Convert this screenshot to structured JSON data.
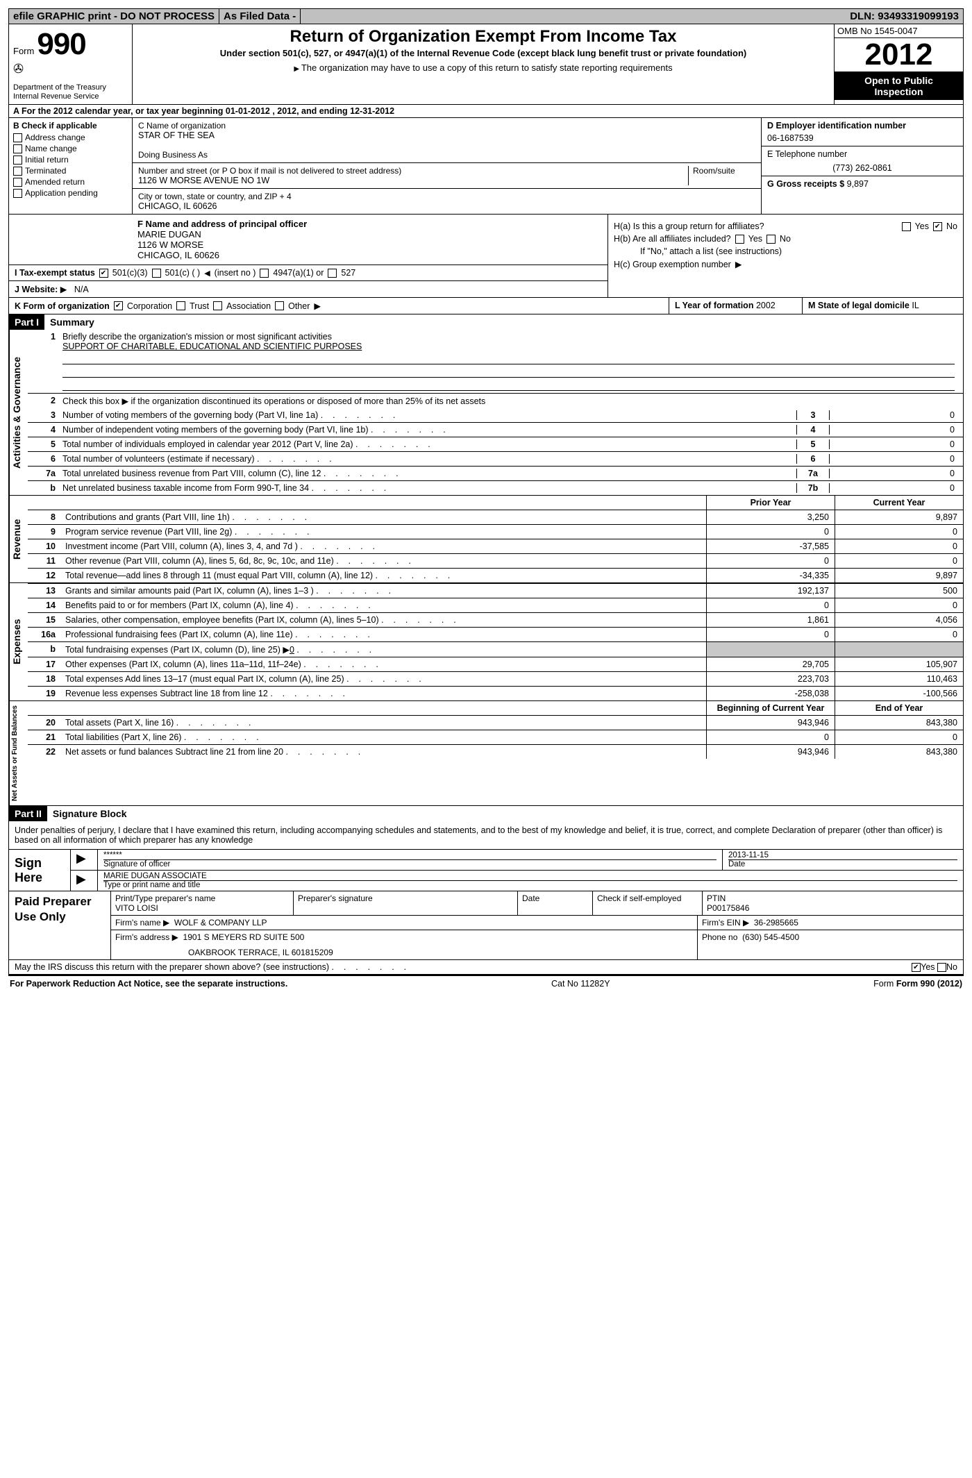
{
  "topbar": {
    "efile": "efile GRAPHIC print - DO NOT PROCESS",
    "asfiled": "As Filed Data -",
    "dln_label": "DLN:",
    "dln": "93493319099193"
  },
  "header": {
    "form_word": "Form",
    "form_num": "990",
    "dept1": "Department of the Treasury",
    "dept2": "Internal Revenue Service",
    "title": "Return of Organization Exempt From Income Tax",
    "sub1": "Under section 501(c), 527, or 4947(a)(1) of the Internal Revenue Code (except black lung benefit trust or private foundation)",
    "sub2": "The organization may have to use a copy of this return to satisfy state reporting requirements",
    "omb": "OMB No 1545-0047",
    "year": "2012",
    "open1": "Open to Public",
    "open2": "Inspection"
  },
  "rowA": "A For the 2012 calendar year, or tax year beginning 01-01-2012    , 2012, and ending 12-31-2012",
  "colB": {
    "label": "B Check if applicable",
    "items": [
      "Address change",
      "Name change",
      "Initial return",
      "Terminated",
      "Amended return",
      "Application pending"
    ]
  },
  "colC": {
    "name_lbl": "C Name of organization",
    "name": "STAR OF THE SEA",
    "dba_lbl": "Doing Business As",
    "street_lbl": "Number and street (or P O  box if mail is not delivered to street address)",
    "room_lbl": "Room/suite",
    "street": "1126 W MORSE AVENUE NO 1W",
    "city_lbl": "City or town, state or country, and ZIP + 4",
    "city": "CHICAGO, IL  60626"
  },
  "colD": {
    "ein_lbl": "D Employer identification number",
    "ein": "06-1687539",
    "tel_lbl": "E Telephone number",
    "tel": "(773) 262-0861",
    "gross_lbl": "G Gross receipts $",
    "gross": "9,897"
  },
  "rowF": {
    "lbl": "F  Name and address of principal officer",
    "l1": "MARIE DUGAN",
    "l2": "1126 W MORSE",
    "l3": "CHICAGO, IL  60626"
  },
  "rowH": {
    "ha": "H(a)  Is this a group return for affiliates?",
    "yes": "Yes",
    "no": "No",
    "hb": "H(b)  Are all affiliates included?",
    "hb2": "If \"No,\" attach a list  (see instructions)",
    "hc": "H(c)   Group exemption number"
  },
  "rowI": {
    "lbl": "I   Tax-exempt status",
    "o1": "501(c)(3)",
    "o2": "501(c) (   )",
    "o2b": "(insert no )",
    "o3": "4947(a)(1) or",
    "o4": "527"
  },
  "rowJ": {
    "lbl": "J   Website:",
    "val": "N/A"
  },
  "rowK": {
    "lbl": "K Form of organization",
    "o1": "Corporation",
    "o2": "Trust",
    "o3": "Association",
    "o4": "Other",
    "yof_lbl": "L Year of formation",
    "yof": "2002",
    "dom_lbl": "M State of legal domicile",
    "dom": "IL"
  },
  "part1": {
    "hdr": "Part I",
    "title": "Summary"
  },
  "vlabels": {
    "ag": "Activities & Governance",
    "rev": "Revenue",
    "exp": "Expenses",
    "na": "Net Assets or Fund Balances"
  },
  "summary": {
    "l1a": "Briefly describe the organization's mission or most significant activities",
    "l1b": "SUPPORT OF CHARITABLE, EDUCATIONAL AND SCIENTIFIC PURPOSES",
    "l2": "Check this box ▶      if the organization discontinued its operations or disposed of more than 25% of its net assets",
    "rows": [
      {
        "n": "3",
        "t": "Number of voting members of the governing body (Part VI, line 1a)",
        "b": "3",
        "v": "0"
      },
      {
        "n": "4",
        "t": "Number of independent voting members of the governing body (Part VI, line 1b)",
        "b": "4",
        "v": "0"
      },
      {
        "n": "5",
        "t": "Total number of individuals employed in calendar year 2012 (Part V, line 2a)",
        "b": "5",
        "v": "0"
      },
      {
        "n": "6",
        "t": "Total number of volunteers (estimate if necessary)",
        "b": "6",
        "v": "0"
      },
      {
        "n": "7a",
        "t": "Total unrelated business revenue from Part VIII, column (C), line 12",
        "b": "7a",
        "v": "0"
      },
      {
        "n": "b",
        "t": "Net unrelated business taxable income from Form 990-T, line 34",
        "b": "7b",
        "v": "0"
      }
    ]
  },
  "rev_hdr": {
    "c1": "Prior Year",
    "c2": "Current Year"
  },
  "rev_rows": [
    {
      "n": "8",
      "t": "Contributions and grants (Part VIII, line 1h)",
      "c1": "3,250",
      "c2": "9,897"
    },
    {
      "n": "9",
      "t": "Program service revenue (Part VIII, line 2g)",
      "c1": "0",
      "c2": "0"
    },
    {
      "n": "10",
      "t": "Investment income (Part VIII, column (A), lines 3, 4, and 7d )",
      "c1": "-37,585",
      "c2": "0"
    },
    {
      "n": "11",
      "t": "Other revenue (Part VIII, column (A), lines 5, 6d, 8c, 9c, 10c, and 11e)",
      "c1": "0",
      "c2": "0"
    },
    {
      "n": "12",
      "t": "Total revenue—add lines 8 through 11 (must equal Part VIII, column (A), line 12)",
      "c1": "-34,335",
      "c2": "9,897"
    }
  ],
  "exp_rows": [
    {
      "n": "13",
      "t": "Grants and similar amounts paid (Part IX, column (A), lines 1–3 )",
      "c1": "192,137",
      "c2": "500"
    },
    {
      "n": "14",
      "t": "Benefits paid to or for members (Part IX, column (A), line 4)",
      "c1": "0",
      "c2": "0"
    },
    {
      "n": "15",
      "t": "Salaries, other compensation, employee benefits (Part IX, column (A), lines 5–10)",
      "c1": "1,861",
      "c2": "4,056"
    },
    {
      "n": "16a",
      "t": "Professional fundraising fees (Part IX, column (A), line 11e)",
      "c1": "0",
      "c2": "0"
    },
    {
      "n": "b",
      "t": "Total fundraising expenses (Part IX, column (D), line 25) ▶",
      "c1": "",
      "c2": "",
      "shade": true,
      "inline": "0"
    },
    {
      "n": "17",
      "t": "Other expenses (Part IX, column (A), lines 11a–11d, 11f–24e)",
      "c1": "29,705",
      "c2": "105,907"
    },
    {
      "n": "18",
      "t": "Total expenses  Add lines 13–17 (must equal Part IX, column (A), line 25)",
      "c1": "223,703",
      "c2": "110,463"
    },
    {
      "n": "19",
      "t": "Revenue less expenses  Subtract line 18 from line 12",
      "c1": "-258,038",
      "c2": "-100,566"
    }
  ],
  "na_hdr": {
    "c1": "Beginning of Current Year",
    "c2": "End of Year"
  },
  "na_rows": [
    {
      "n": "20",
      "t": "Total assets (Part X, line 16)",
      "c1": "943,946",
      "c2": "843,380"
    },
    {
      "n": "21",
      "t": "Total liabilities (Part X, line 26)",
      "c1": "0",
      "c2": "0"
    },
    {
      "n": "22",
      "t": "Net assets or fund balances  Subtract line 21 from line 20",
      "c1": "943,946",
      "c2": "843,380"
    }
  ],
  "part2": {
    "hdr": "Part II",
    "title": "Signature Block"
  },
  "sig": {
    "intro": "Under penalties of perjury, I declare that I have examined this return, including accompanying schedules and statements, and to the best of my knowledge and belief, it is true, correct, and complete  Declaration of preparer (other than officer) is based on all information of which preparer has any knowledge",
    "sign_here": "Sign Here",
    "stars": "******",
    "sig_officer": "Signature of officer",
    "date_lbl": "Date",
    "date_val": "2013-11-15",
    "name_title": "MARIE DUGAN ASSOCIATE",
    "type_lbl": "Type or print name and title"
  },
  "paid": {
    "label": "Paid Preparer Use Only",
    "prep_name_lbl": "Print/Type preparer's name",
    "prep_name": "VITO LOISI",
    "prep_sig_lbl": "Preparer's signature",
    "date_lbl": "Date",
    "check_lbl": "Check       if self-employed",
    "ptin_lbl": "PTIN",
    "ptin": "P00175846",
    "firm_name_lbl": "Firm's name    ▶",
    "firm_name": "WOLF & COMPANY LLP",
    "firm_ein_lbl": "Firm's EIN ▶",
    "firm_ein": "36-2985665",
    "firm_addr_lbl": "Firm's address ▶",
    "firm_addr1": "1901 S MEYERS RD SUITE 500",
    "firm_addr2": "OAKBROOK TERRACE, IL  601815209",
    "phone_lbl": "Phone no",
    "phone": "(630) 545-4500"
  },
  "discuss": {
    "q": "May the IRS discuss this return with the preparer shown above? (see instructions)",
    "yes": "Yes",
    "no": "No"
  },
  "footer": {
    "left": "For Paperwork Reduction Act Notice, see the separate instructions.",
    "mid": "Cat No 11282Y",
    "right": "Form 990 (2012)"
  }
}
